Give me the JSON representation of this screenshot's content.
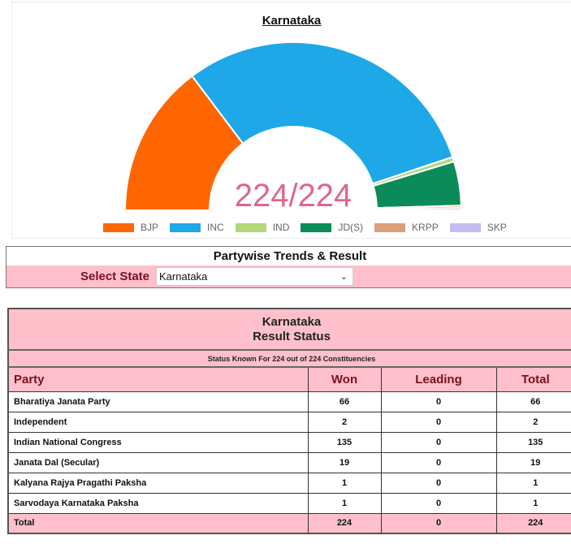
{
  "chart_data": {
    "type": "pie",
    "subtype": "semi-donut (parliament)",
    "title": "Karnataka",
    "center_label": "224/224",
    "categories": [
      "BJP",
      "INC",
      "IND",
      "JD(S)",
      "KRPP",
      "SKP"
    ],
    "values": [
      66,
      135,
      2,
      19,
      1,
      1
    ],
    "colors": [
      "#ff6600",
      "#1ea8e8",
      "#b3d77a",
      "#0b8a5a",
      "#d9a07a",
      "#c5bdf0"
    ],
    "total": 224,
    "legend_position": "bottom"
  },
  "chart": {
    "title": "Karnataka",
    "center_label": "224/224",
    "legend": [
      {
        "label": "BJP",
        "color": "#ff6600"
      },
      {
        "label": "INC",
        "color": "#1ea8e8"
      },
      {
        "label": "IND",
        "color": "#b3d77a"
      },
      {
        "label": "JD(S)",
        "color": "#0b8a5a"
      },
      {
        "label": "KRPP",
        "color": "#d9a07a"
      },
      {
        "label": "SKP",
        "color": "#c5bdf0"
      }
    ]
  },
  "trends": {
    "title": "Partywise Trends & Result",
    "select_label": "Select State",
    "selected_state": "Karnataka"
  },
  "table": {
    "state": "Karnataka",
    "subtitle": "Result Status",
    "status_text": "Status Known For 224 out of 224 Constituencies",
    "headers": {
      "party": "Party",
      "won": "Won",
      "leading": "Leading",
      "total": "Total"
    },
    "rows": [
      {
        "party": "Bharatiya Janata Party",
        "won": "66",
        "leading": "0",
        "total": "66"
      },
      {
        "party": "Independent",
        "won": "2",
        "leading": "0",
        "total": "2"
      },
      {
        "party": "Indian National Congress",
        "won": "135",
        "leading": "0",
        "total": "135"
      },
      {
        "party": "Janata Dal (Secular)",
        "won": "19",
        "leading": "0",
        "total": "19"
      },
      {
        "party": "Kalyana Rajya Pragathi Paksha",
        "won": "1",
        "leading": "0",
        "total": "1"
      },
      {
        "party": "Sarvodaya Karnataka Paksha",
        "won": "1",
        "leading": "0",
        "total": "1"
      }
    ],
    "total_row": {
      "party": "Total",
      "won": "224",
      "leading": "0",
      "total": "224"
    }
  }
}
